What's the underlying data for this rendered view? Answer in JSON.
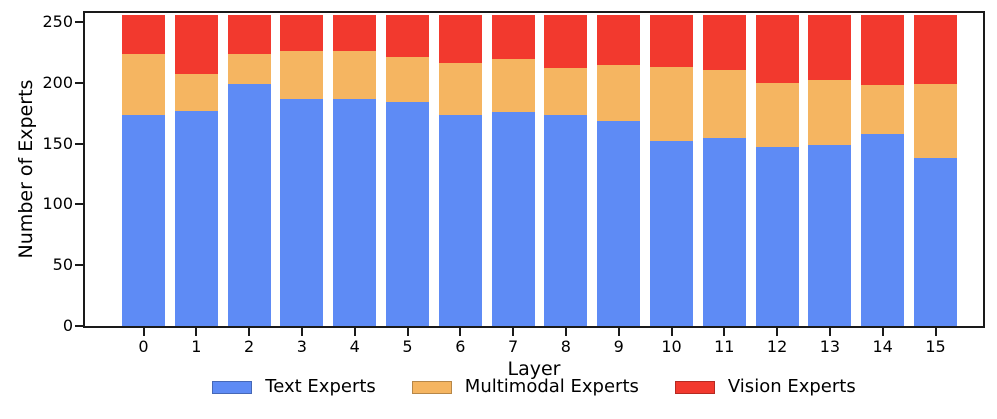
{
  "chart_data": {
    "type": "bar",
    "stacked": true,
    "orientation": "vertical",
    "title": "",
    "xlabel": "Layer",
    "ylabel": "Number of Experts",
    "categories": [
      "0",
      "1",
      "2",
      "3",
      "4",
      "5",
      "6",
      "7",
      "8",
      "9",
      "10",
      "11",
      "12",
      "13",
      "14",
      "15"
    ],
    "series": [
      {
        "name": "Text Experts",
        "color": "#5E8BF5",
        "values": [
          174,
          177,
          199,
          187,
          187,
          184,
          174,
          176,
          174,
          169,
          152,
          155,
          147,
          149,
          158,
          138
        ]
      },
      {
        "name": "Multimodal Experts",
        "color": "#F5B561",
        "values": [
          50,
          30,
          25,
          39,
          39,
          37,
          42,
          44,
          38,
          46,
          61,
          56,
          53,
          53,
          40,
          61
        ]
      },
      {
        "name": "Vision Experts",
        "color": "#F2392E",
        "values": [
          32,
          49,
          32,
          30,
          30,
          35,
          40,
          36,
          44,
          41,
          43,
          45,
          56,
          54,
          58,
          57
        ]
      }
    ],
    "bar_total_per_category": 256,
    "yticks": [
      0,
      50,
      100,
      150,
      200,
      250
    ],
    "ylim": [
      0,
      257.5
    ],
    "grid": false,
    "legend_position": "bottom",
    "axis_color": "#1a1a1a",
    "text_color": "#000000"
  }
}
